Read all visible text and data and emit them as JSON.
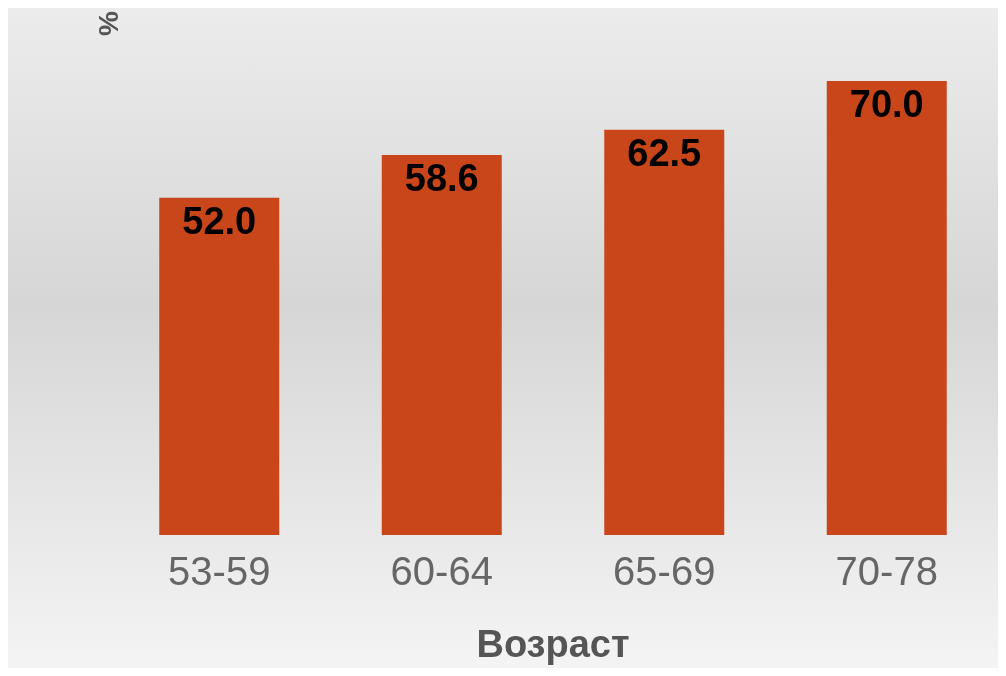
{
  "chart_data": {
    "type": "bar",
    "xlabel": "Возраст",
    "ylabel": "%",
    "categories": [
      "53-59",
      "60-64",
      "65-69",
      "70-78"
    ],
    "values": [
      52.0,
      58.6,
      62.5,
      70.0
    ],
    "value_labels": [
      "52.0",
      "58.6",
      "62.5",
      "70.0"
    ],
    "color": "#c8461a"
  }
}
